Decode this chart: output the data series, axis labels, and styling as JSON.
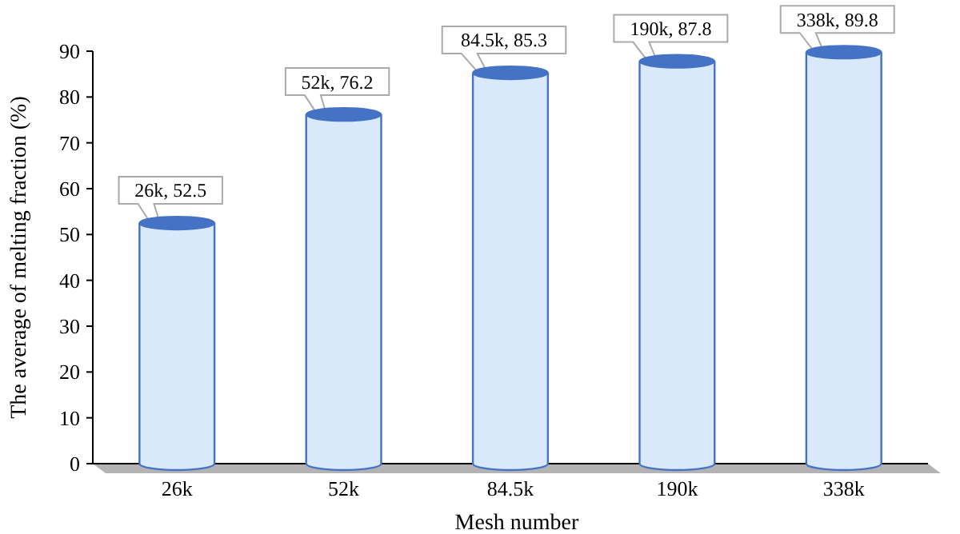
{
  "chart_data": {
    "type": "bar",
    "xlabel": "Mesh number",
    "ylabel": "The average of melting fraction (%)",
    "categories": [
      "26k",
      "52k",
      "84.5k",
      "190k",
      "338k"
    ],
    "values": [
      52.5,
      76.2,
      85.3,
      87.8,
      89.8
    ],
    "value_labels": [
      "26k, 52.5",
      "52k, 76.2",
      "84.5k, 85.3",
      "190k, 87.8",
      "338k, 89.8"
    ],
    "color": "#dae8fc",
    "ylim": [
      0,
      90
    ],
    "yticks": [
      0,
      10,
      20,
      30,
      40,
      50,
      60,
      70,
      80,
      90
    ],
    "grid": false
  }
}
